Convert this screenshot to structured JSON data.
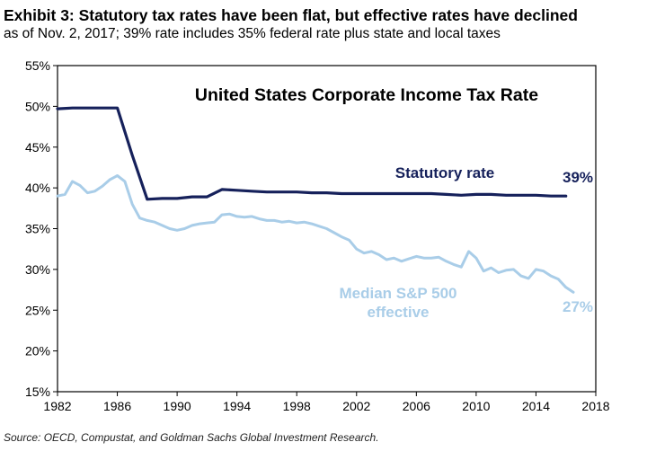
{
  "exhibit": {
    "title": "Exhibit 3: Statutory tax rates have been flat, but effective rates have declined",
    "subtitle": "as of Nov. 2, 2017; 39% rate includes 35% federal rate plus state and local taxes"
  },
  "source": "Source: OECD, Compustat, and Goldman Sachs Global Investment Research.",
  "colors": {
    "statutory": "#16215b",
    "effective": "#a9cde8",
    "frame": "#000000"
  },
  "chart_data": {
    "type": "line",
    "title": "United States Corporate Income Tax Rate",
    "xlabel": "",
    "ylabel": "",
    "xlim": [
      1982,
      2018
    ],
    "ylim": [
      15,
      55
    ],
    "x_ticks": [
      1982,
      1986,
      1990,
      1994,
      1998,
      2002,
      2006,
      2010,
      2014,
      2018
    ],
    "y_ticks": [
      15,
      20,
      25,
      30,
      35,
      40,
      45,
      50,
      55
    ],
    "y_tick_labels": [
      "15%",
      "20%",
      "25%",
      "30%",
      "35%",
      "40%",
      "45%",
      "50%",
      "55%"
    ],
    "grid": false,
    "legend": "inline labels",
    "series": [
      {
        "name": "Statutory rate",
        "end_label": "39%",
        "color": "#16215b",
        "x": [
          1982,
          1983,
          1984,
          1985,
          1986,
          1987,
          1988,
          1989,
          1990,
          1991,
          1992,
          1993,
          1994,
          1995,
          1996,
          1997,
          1998,
          1999,
          2000,
          2001,
          2002,
          2003,
          2004,
          2005,
          2006,
          2007,
          2008,
          2009,
          2010,
          2011,
          2012,
          2013,
          2014,
          2015,
          2016
        ],
        "values": [
          49.7,
          49.8,
          49.8,
          49.8,
          49.8,
          44.0,
          38.6,
          38.7,
          38.7,
          38.9,
          38.9,
          39.8,
          39.7,
          39.6,
          39.5,
          39.5,
          39.5,
          39.4,
          39.4,
          39.3,
          39.3,
          39.3,
          39.3,
          39.3,
          39.3,
          39.3,
          39.2,
          39.1,
          39.2,
          39.2,
          39.1,
          39.1,
          39.1,
          39.0,
          39.0
        ]
      },
      {
        "name": "Median S&P 500 effective",
        "end_label": "27%",
        "color": "#a9cde8",
        "x": [
          1982,
          1982.5,
          1983,
          1983.5,
          1984,
          1984.5,
          1985,
          1985.5,
          1986,
          1986.5,
          1987,
          1987.5,
          1988,
          1988.5,
          1989,
          1989.5,
          1990,
          1990.5,
          1991,
          1991.5,
          1992,
          1992.5,
          1993,
          1993.5,
          1994,
          1994.5,
          1995,
          1995.5,
          1996,
          1996.5,
          1997,
          1997.5,
          1998,
          1998.5,
          1999,
          1999.5,
          2000,
          2000.5,
          2001,
          2001.5,
          2002,
          2002.5,
          2003,
          2003.5,
          2004,
          2004.5,
          2005,
          2005.5,
          2006,
          2006.5,
          2007,
          2007.5,
          2008,
          2008.5,
          2009,
          2009.5,
          2010,
          2010.5,
          2011,
          2011.5,
          2012,
          2012.5,
          2013,
          2013.5,
          2014,
          2014.5,
          2015,
          2015.5,
          2016,
          2016.5
        ],
        "values": [
          39.0,
          39.2,
          40.8,
          40.3,
          39.4,
          39.6,
          40.2,
          41.0,
          41.5,
          40.8,
          38.0,
          36.3,
          36.0,
          35.8,
          35.4,
          35.0,
          34.8,
          35.0,
          35.4,
          35.6,
          35.7,
          35.8,
          36.7,
          36.8,
          36.5,
          36.4,
          36.5,
          36.2,
          36.0,
          36.0,
          35.8,
          35.9,
          35.7,
          35.8,
          35.6,
          35.3,
          35.0,
          34.5,
          34.0,
          33.6,
          32.5,
          32.0,
          32.2,
          31.8,
          31.2,
          31.4,
          31.0,
          31.3,
          31.6,
          31.4,
          31.4,
          31.5,
          31.0,
          30.6,
          30.3,
          32.2,
          31.4,
          29.8,
          30.2,
          29.6,
          29.9,
          30.0,
          29.2,
          28.9,
          30.0,
          29.8,
          29.2,
          28.8,
          27.8,
          27.2
        ]
      }
    ],
    "annotations": [
      {
        "text": "Statutory rate",
        "series": 0
      },
      {
        "text": "39%",
        "series": 0
      },
      {
        "text": "Median S&P 500",
        "series": 1
      },
      {
        "text": "effective",
        "series": 1
      },
      {
        "text": "27%",
        "series": 1
      }
    ]
  }
}
